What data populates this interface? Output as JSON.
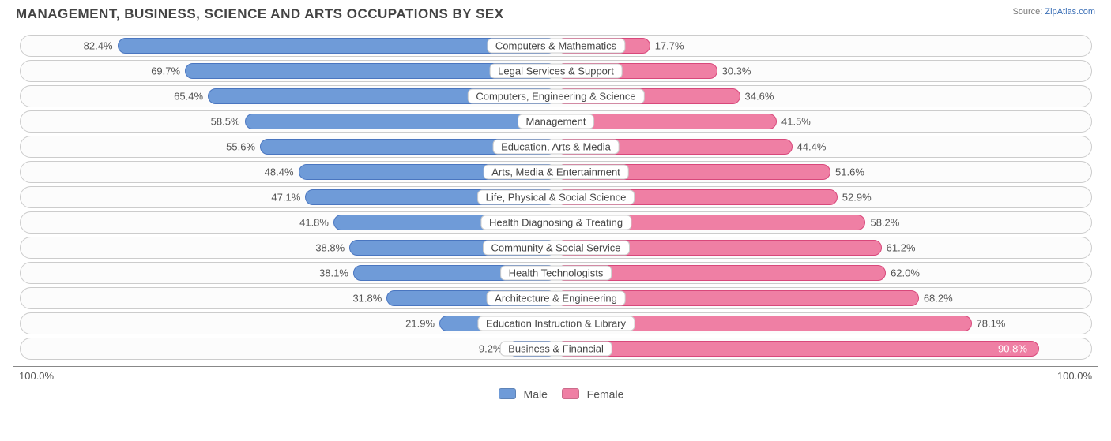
{
  "title": "MANAGEMENT, BUSINESS, SCIENCE AND ARTS OCCUPATIONS BY SEX",
  "source_label": "Source:",
  "source_value": "ZipAtlas.com",
  "axis": {
    "left": "100.0%",
    "right": "100.0%"
  },
  "legend": {
    "male": "Male",
    "female": "Female"
  },
  "colors": {
    "male_fill": "#6f9bd8",
    "male_border": "#4a76c0",
    "female_fill": "#ef7fa4",
    "female_border": "#d8487b",
    "track_border": "#cccccc",
    "text": "#555555"
  },
  "chart": {
    "type": "diverging-bar",
    "rows": [
      {
        "category": "Computers & Mathematics",
        "male": 82.4,
        "female": 17.7
      },
      {
        "category": "Legal Services & Support",
        "male": 69.7,
        "female": 30.3
      },
      {
        "category": "Computers, Engineering & Science",
        "male": 65.4,
        "female": 34.6
      },
      {
        "category": "Management",
        "male": 58.5,
        "female": 41.5
      },
      {
        "category": "Education, Arts & Media",
        "male": 55.6,
        "female": 44.4
      },
      {
        "category": "Arts, Media & Entertainment",
        "male": 48.4,
        "female": 51.6
      },
      {
        "category": "Life, Physical & Social Science",
        "male": 47.1,
        "female": 52.9
      },
      {
        "category": "Health Diagnosing & Treating",
        "male": 41.8,
        "female": 58.2
      },
      {
        "category": "Community & Social Service",
        "male": 38.8,
        "female": 61.2
      },
      {
        "category": "Health Technologists",
        "male": 38.1,
        "female": 62.0
      },
      {
        "category": "Architecture & Engineering",
        "male": 31.8,
        "female": 68.2
      },
      {
        "category": "Education Instruction & Library",
        "male": 21.9,
        "female": 78.1
      },
      {
        "category": "Business & Financial",
        "male": 9.2,
        "female": 90.8
      }
    ]
  }
}
